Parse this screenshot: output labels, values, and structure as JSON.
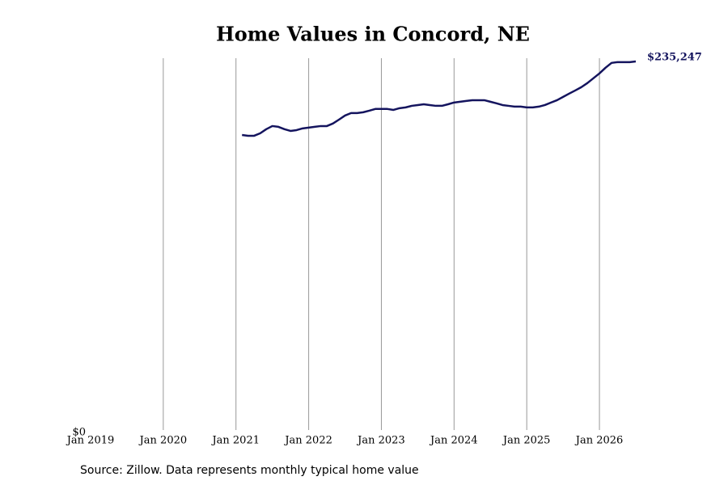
{
  "chart_data": {
    "type": "line",
    "title": "Home Values in Concord, NE",
    "source": "Source: Zillow. Data represents monthly typical home value",
    "color": "#14145e",
    "grid": true,
    "ylim": [
      0,
      237300
    ],
    "yticks": [
      {
        "value": 0,
        "label": "$0"
      }
    ],
    "xlim": [
      "2019-01",
      "2026-07"
    ],
    "xticks": [
      {
        "value": "2019-01",
        "label": "Jan 2019"
      },
      {
        "value": "2020-01",
        "label": "Jan 2020"
      },
      {
        "value": "2021-01",
        "label": "Jan 2021"
      },
      {
        "value": "2022-01",
        "label": "Jan 2022"
      },
      {
        "value": "2023-01",
        "label": "Jan 2023"
      },
      {
        "value": "2024-01",
        "label": "Jan 2024"
      },
      {
        "value": "2025-01",
        "label": "Jan 2025"
      },
      {
        "value": "2026-01",
        "label": "Jan 2026"
      }
    ],
    "x": [
      "2021-02",
      "2021-03",
      "2021-04",
      "2021-05",
      "2021-06",
      "2021-07",
      "2021-08",
      "2021-09",
      "2021-10",
      "2021-11",
      "2021-12",
      "2022-01",
      "2022-02",
      "2022-03",
      "2022-04",
      "2022-05",
      "2022-06",
      "2022-07",
      "2022-08",
      "2022-09",
      "2022-10",
      "2022-11",
      "2022-12",
      "2023-01",
      "2023-02",
      "2023-03",
      "2023-04",
      "2023-05",
      "2023-06",
      "2023-07",
      "2023-08",
      "2023-09",
      "2023-10",
      "2023-11",
      "2023-12",
      "2024-01",
      "2024-02",
      "2024-03",
      "2024-04",
      "2024-05",
      "2024-06",
      "2024-07",
      "2024-08",
      "2024-09",
      "2024-10",
      "2024-11",
      "2024-12",
      "2025-01",
      "2025-02",
      "2025-03",
      "2025-04",
      "2025-05",
      "2025-06",
      "2025-07",
      "2025-08",
      "2025-09",
      "2025-10",
      "2025-11",
      "2025-12",
      "2026-01",
      "2026-02",
      "2026-03",
      "2026-04",
      "2026-05",
      "2026-06",
      "2026-07"
    ],
    "values": [
      188300,
      187800,
      187800,
      189400,
      192000,
      194000,
      193500,
      192000,
      190900,
      191400,
      192500,
      193000,
      193500,
      194000,
      194000,
      195600,
      198100,
      200700,
      202300,
      202300,
      202800,
      203800,
      204900,
      204900,
      204900,
      204300,
      205400,
      205900,
      206900,
      207400,
      207900,
      207400,
      206900,
      206900,
      207900,
      209000,
      209500,
      210000,
      210500,
      210500,
      210500,
      209500,
      208500,
      207400,
      206900,
      206400,
      206400,
      205900,
      205900,
      206400,
      207400,
      209000,
      210500,
      212600,
      214700,
      216700,
      218800,
      221400,
      224500,
      227600,
      231200,
      234300,
      234800,
      234800,
      234800,
      235247
    ],
    "value_labels": [
      null,
      null,
      null,
      null,
      null,
      null,
      null,
      null,
      null,
      null,
      null,
      null,
      null,
      null,
      null,
      null,
      null,
      null,
      null,
      null,
      null,
      null,
      null,
      null,
      null,
      null,
      null,
      null,
      null,
      null,
      null,
      null,
      null,
      null,
      null,
      null,
      null,
      null,
      null,
      null,
      null,
      null,
      null,
      null,
      null,
      null,
      null,
      null,
      null,
      null,
      null,
      null,
      null,
      null,
      null,
      null,
      null,
      null,
      null,
      null,
      null,
      null,
      null,
      null,
      null,
      "$235,247"
    ]
  }
}
